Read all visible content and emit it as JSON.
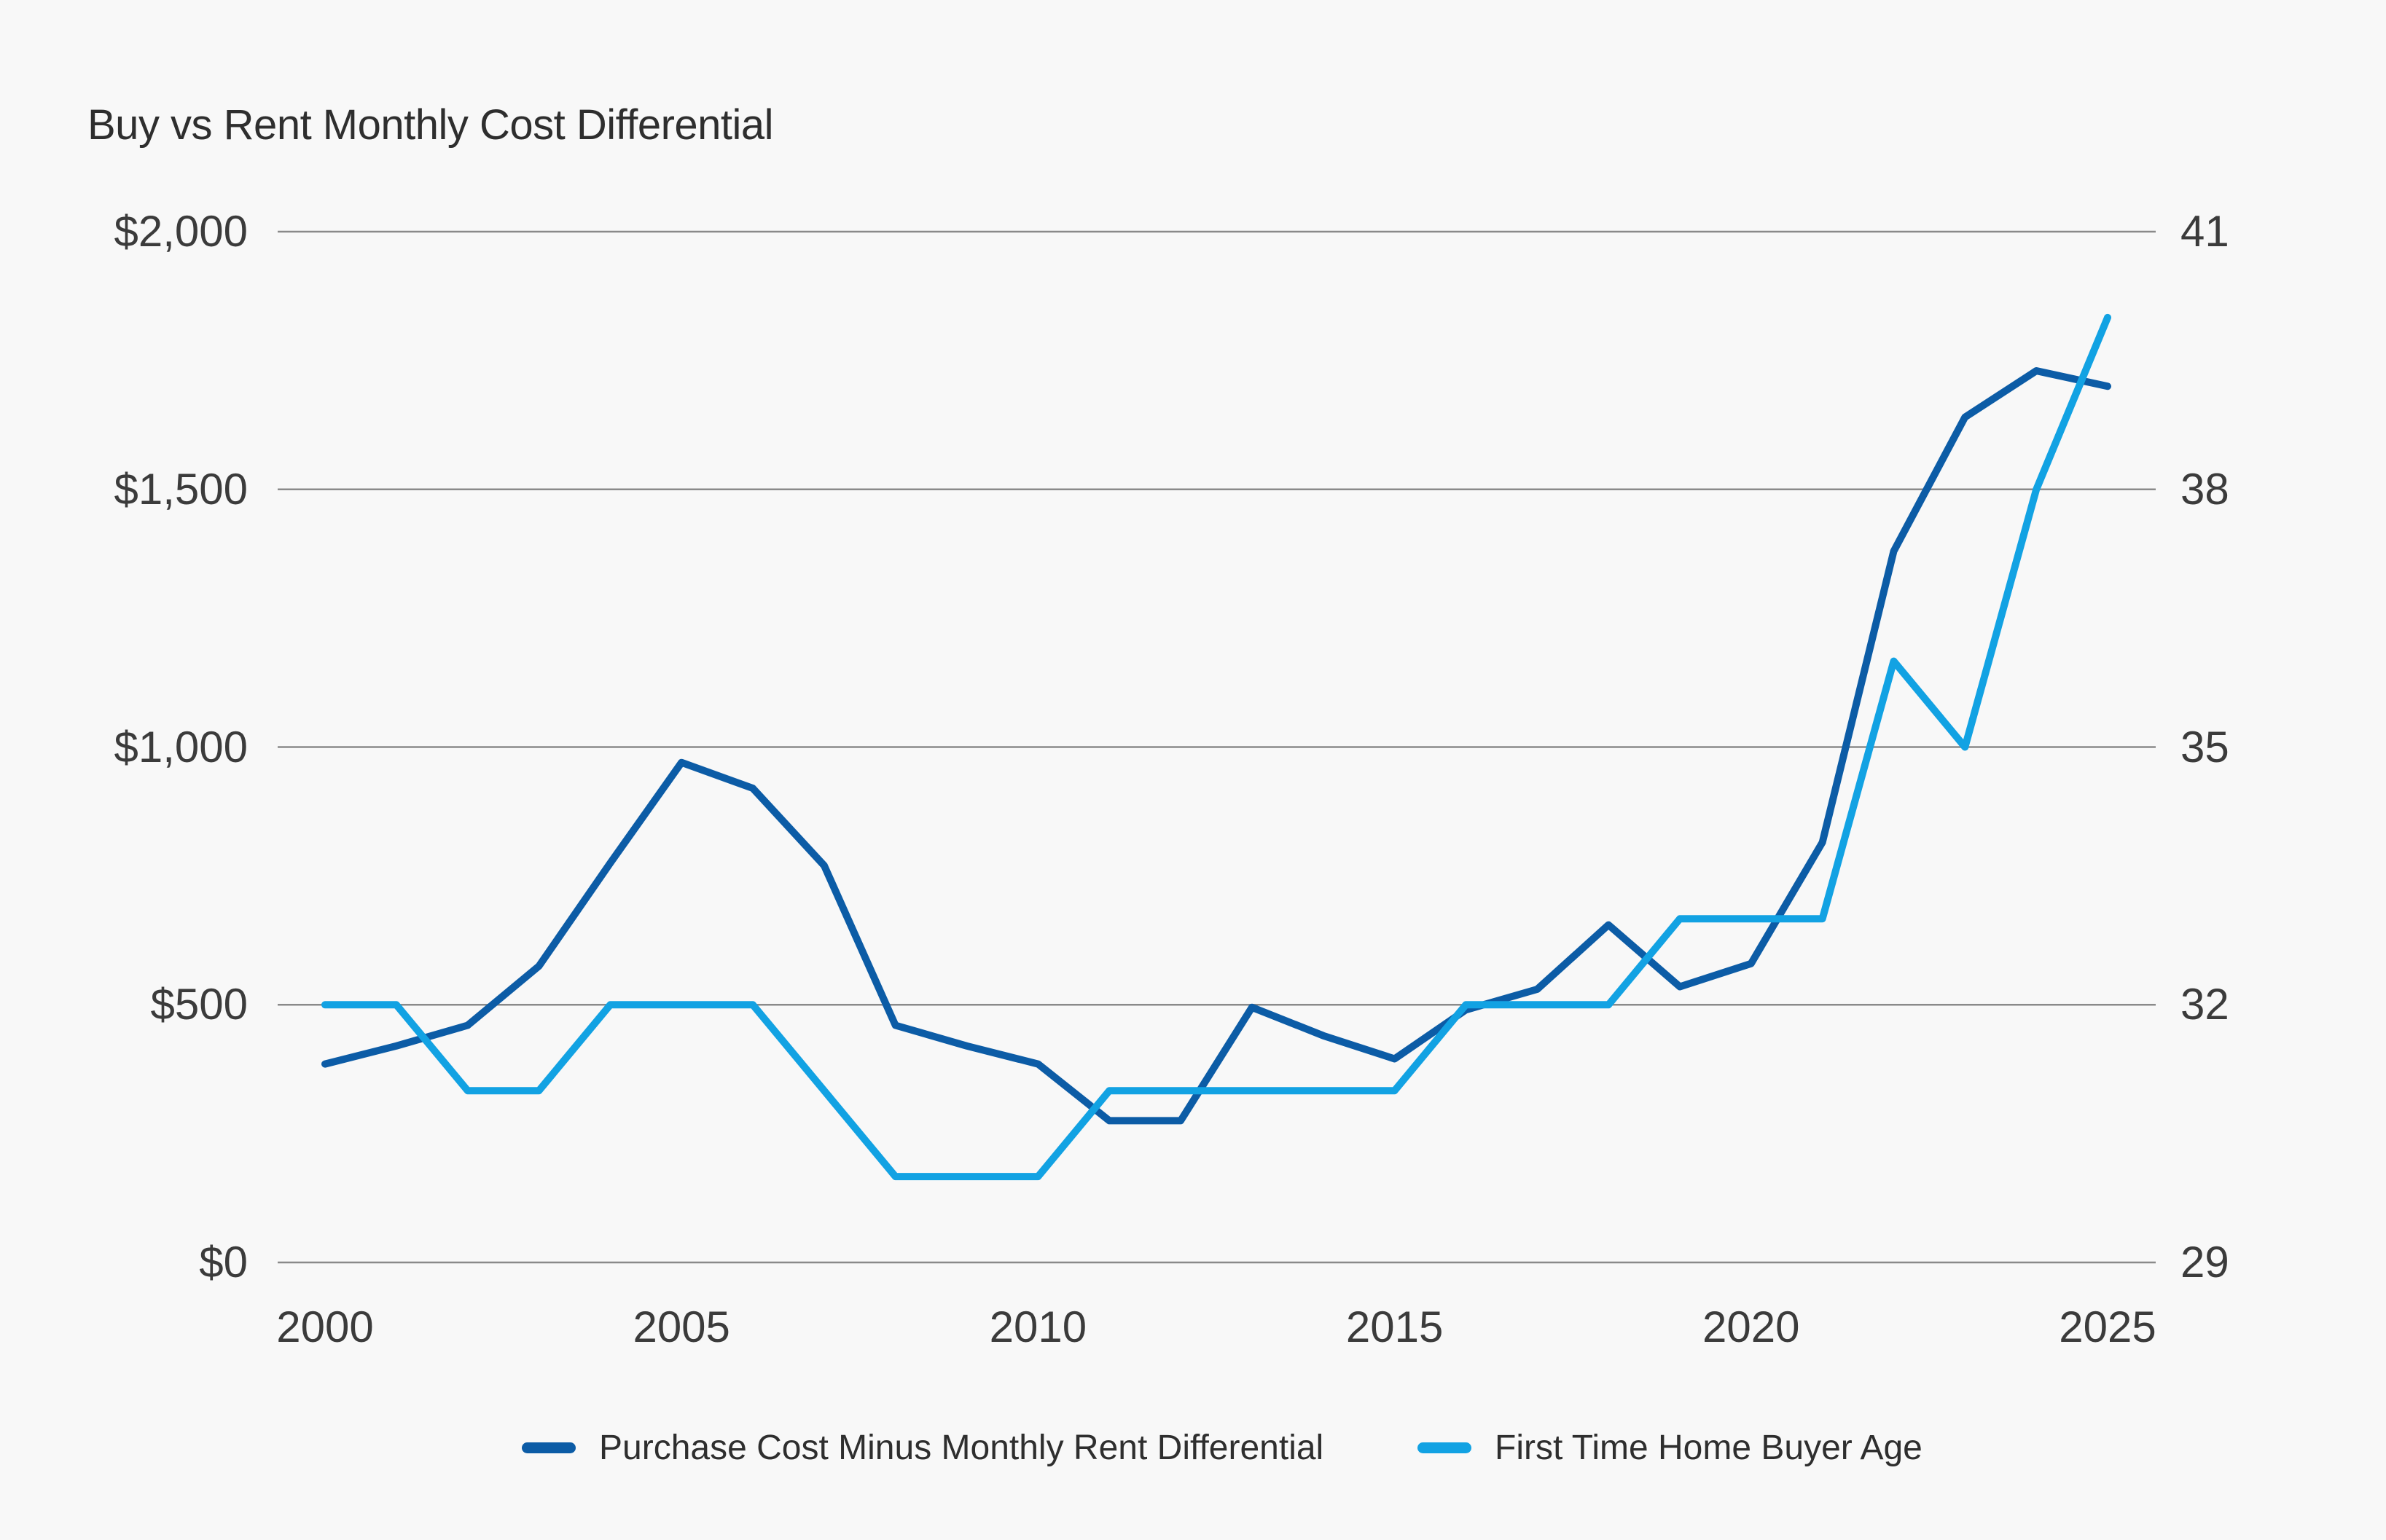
{
  "chart_data": {
    "type": "line",
    "title": "Buy vs Rent Monthly Cost Differential",
    "x": [
      2000,
      2001,
      2002,
      2003,
      2004,
      2005,
      2006,
      2007,
      2008,
      2009,
      2010,
      2011,
      2012,
      2013,
      2014,
      2015,
      2016,
      2017,
      2018,
      2019,
      2020,
      2021,
      2022,
      2023,
      2024,
      2025
    ],
    "x_tick_labels": [
      "2000",
      "2005",
      "2010",
      "2015",
      "2020",
      "2025"
    ],
    "x_tick_years": [
      2000,
      2005,
      2010,
      2015,
      2020,
      2025
    ],
    "y_left_tick_labels": [
      "$2,000",
      "$1,500",
      "$1,000",
      "$500",
      "$0"
    ],
    "y_right_tick_labels": [
      "41",
      "38",
      "35",
      "32",
      "29"
    ],
    "y_left_range": [
      0,
      2000
    ],
    "y_right_range": [
      29,
      41
    ],
    "grid": "horizontal gridlines only, no axis lines, no vertical grid",
    "legend_position": "bottom-center",
    "series": [
      {
        "name": "Purchase Cost Minus Monthly Rent Differential",
        "axis": "left",
        "color": "#0c5ca6",
        "values": [
          385,
          420,
          460,
          575,
          775,
          970,
          920,
          770,
          460,
          420,
          385,
          275,
          275,
          495,
          440,
          395,
          490,
          530,
          655,
          535,
          580,
          815,
          1380,
          1640,
          1730,
          1700
        ]
      },
      {
        "name": "First Time Home Buyer Age",
        "axis": "right",
        "color": "#12a2e3",
        "values": [
          32,
          32,
          31,
          31,
          32,
          32,
          32,
          31,
          30,
          30,
          30,
          31,
          31,
          31,
          31,
          31,
          32,
          32,
          32,
          33,
          33,
          33,
          36,
          35,
          38,
          40
        ]
      }
    ]
  },
  "colors": {
    "background": "#f8f8f8",
    "gridline": "#8a8a8a",
    "axis_text": "#3b3b3b",
    "title_text": "#2e2e2e",
    "legend_text": "#2e2e2e"
  }
}
